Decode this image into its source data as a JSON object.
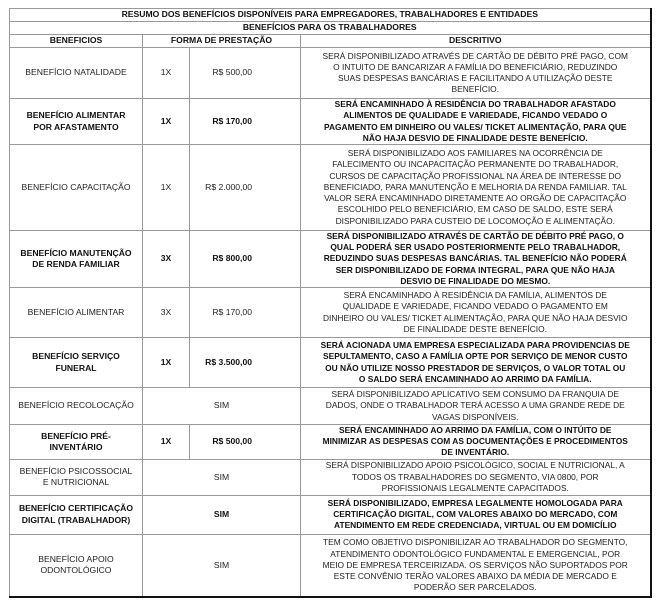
{
  "title": "RESUMO DOS BENEFÍCIOS DISPONÍVEIS PARA EMPREGADORES, TRABALHADORES E ENTIDADES",
  "subtitle": "BENEFÍCIOS PARA OS TRABALHADORES",
  "headers": {
    "beneficios": "BENEFICIOS",
    "forma": "FORMA DE PRESTAÇÃO",
    "descritivo": "DESCRITIVO"
  },
  "rows": [
    {
      "name": "BENEFÍCIO NATALIDADE",
      "times": "1X",
      "value": "R$    500,00",
      "bold": false,
      "description": "SERÁ DISPONIBILIZADO ATRAVÉS DE CARTÃO DE DÉBITO PRÉ PAGO, COM\nO INTUITO DE BANCARIZAR A FAMÍLIA DO BENEFICIÁRIO, REDUZINDO\nSUAS DESPESAS BANCÁRIAS E FACILITANDO A UTILIZAÇÃO DESTE\nBENEFÍCIO."
    },
    {
      "name": "BENEFÍCIO ALIMENTAR\nPOR AFASTAMENTO",
      "times": "1X",
      "value": "R$    170,00",
      "bold": true,
      "description": "SERÁ ENCAMINHADO À RESIDÊNCIA DO TRABALHADOR AFASTADO\nALIMENTOS DE QUALIDADE E VARIEDADE, FICANDO VEDADO O\nPAGAMENTO EM DINHEIRO OU VALES/ TICKET ALIMENTAÇÃO, PARA QUE\nNÃO HAJA DESVIO DE FINALIDADE DESTE BENEFÍCIO."
    },
    {
      "name": "BENEFÍCIO CAPACITAÇÃO",
      "times": "1X",
      "value": "R$ 2.000,00",
      "bold": false,
      "description": "SERÁ DISPONIBILIZADO AOS FAMILIARES NA OCORRÊNCIA DE\nFALECIMENTO OU INCAPACITAÇÃO PERMANENTE DO TRABALHADOR,\nCURSOS DE CAPACITAÇÃO PROFISSIONAL NA ÁREA DE INTERESSE DO\nBENEFICIADO, PARA MANUTENÇÃO E MELHORIA DA RENDA FAMILIAR. TAL\nVALOR SERÁ ENCAMINHADO DIRETAMENTE AO ORGÃO DE CAPACITAÇÃO\nESCOLHIDO PELO BENEFICIÁRIO, EM CASO DE SALDO, ESTE SERÁ\nDISPONIBILIZADO PARA CUSTEIO DE LOCOMOÇÃO E ALIMENTAÇÃO."
    },
    {
      "name": "BENEFÍCIO MANUTENÇÃO\nDE RENDA FAMILIAR",
      "times": "3X",
      "value": "R$    800,00",
      "bold": true,
      "description": "SERÁ DISPONIBILIZADO ATRAVÉS DE CARTÃO DE DÉBITO PRÉ PAGO, O\nQUAL PODERÁ SER USADO POSTERIORMENTE PELO TRABALHADOR,\nREDUZINDO SUAS DESPESAS BANCÁRIAS. TAL BENEFÍCIO NÃO PODERÁ\nSER DISPONIBILIZADO DE FORMA INTEGRAL, PARA QUE NÃO HAJA\nDESVIO DE FINALIDADE DO MESMO."
    },
    {
      "name": "BENEFÍCIO ALIMENTAR",
      "times": "3X",
      "value": "R$    170,00",
      "bold": false,
      "description": "SERÁ ENCAMINHADO À RESIDÊNCIA DA FAMÍLIA, ALIMENTOS DE\nQUALIDADE E VARIEDADE, FICANDO VEDADO O PAGAMENTO EM\nDINHEIRO OU VALES/ TICKET ALIMENTAÇÃO, PARA QUE NÃO HAJA DESVIO\nDE FINALIDADE DESTE BENEFÍCIO."
    },
    {
      "name": "BENEFÍCIO SERVIÇO\nFUNERAL",
      "times": "1X",
      "value": "R$ 3.500,00",
      "bold": true,
      "description": "SERÁ ACIONADA UMA EMPRESA ESPECIALIZADA PARA PROVIDENCIAS DE\nSEPULTAMENTO, CASO A FAMÍLIA OPTE POR SERVIÇO DE MENOR CUSTO\nOU NÃO UTILIZE NOSSO PRESTADOR DE SERVIÇOS, O VALOR TOTAL OU\nO SALDO SERÁ ENCAMINHADO AO ARRIMO DA FAMÍLIA."
    },
    {
      "name": "BENEFÍCIO RECOLOCAÇÃO",
      "forma": "SIM",
      "bold": false,
      "description": "SERÁ DISPONIBILIZADO APLICATIVO SEM CONSUMO DA FRANQUIA DE\nDADOS, ONDE O TRABALHADOR TERÁ ACESSO A UMA GRANDE REDE DE\nVAGAS DISPONÍVEIS."
    },
    {
      "name": "BENEFÍCIO PRÉ-\nINVENTÁRIO",
      "times": "1X",
      "value": "R$    500,00",
      "bold": true,
      "description": "SERÁ ENCAMINHADO AO ARRIMO DA FAMÍLIA, COM O INTÚITO DE\nMINIMIZAR AS DESPESAS COM AS DOCUMENTAÇÕES E PROCEDIMENTOS\nDE INVENTÁRIO."
    },
    {
      "name": "BENEFÍCIO PSICOSSOCIAL\nE NUTRICIONAL",
      "forma": "SIM",
      "bold": false,
      "description": "SERÁ DISPONIBILIZADO APOIO PSICOLÓGICO, SOCIAL E NUTRICIONAL, A\nTODOS OS TRABALHADORES DO SEGMENTO, VIA 0800, POR\nPROFISSIONAIS LEGALMENTE CAPACITADOS."
    },
    {
      "name": "BENEFÍCIO CERTIFICAÇÃO\nDIGITAL (TRABALHADOR)",
      "forma": "SIM",
      "bold": true,
      "description": "SERÁ DISPONIBILIZADO, EMPRESA LEGALMENTE HOMOLOGADA PARA\nCERTIFICAÇÃO DIGITAL, COM VALORES ABAIXO DO MERCADO, COM\nATENDIMENTO EM REDE CREDENCIADA, VIRTUAL OU EM DOMICÍLIO"
    },
    {
      "name": "BENEFÍCIO APOIO\nODONTOLÓGICO",
      "forma": "SIM",
      "bold": false,
      "description": "TEM COMO OBJETIVO DISPONIBILIZAR AO TRABALHADOR DO SEGMENTO,\nATENDIMENTO ODONTOLÓGICO FUNDAMENTAL E EMERGENCIAL, POR\nMEIO DE EMPRESA TERCEIRIZADA. OS SERVIÇOS NÃO SUPORTADOS POR\nESTE CONVÊNIO TERÃO VALORES ABAIXO DA MÉDIA DE MERCADO E\nPODERÃO SER PARCELADOS."
    }
  ]
}
